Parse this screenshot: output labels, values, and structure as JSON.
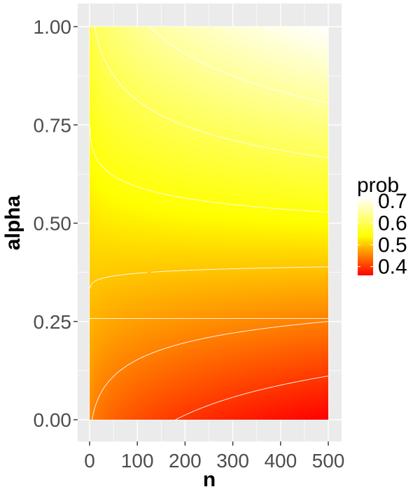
{
  "chart_data": {
    "type": "heatmap",
    "title": "",
    "xlabel": "n",
    "ylabel": "alpha",
    "xlim": [
      0,
      500
    ],
    "ylim": [
      0.0,
      1.0
    ],
    "x_ticks": [
      0,
      100,
      200,
      300,
      400,
      500
    ],
    "x_tick_labels": [
      "0",
      "100",
      "200",
      "300",
      "400",
      "500"
    ],
    "y_ticks": [
      0.0,
      0.25,
      0.5,
      0.75,
      1.0
    ],
    "y_tick_labels": [
      "0.00",
      "0.25",
      "0.50",
      "0.75",
      "1.00"
    ],
    "fill_variable": "prob",
    "color_scale": {
      "low": "#ff0000",
      "mid": "#ffff00",
      "high": "#ffffff",
      "limits": [
        0.36,
        0.72
      ]
    },
    "legend": {
      "title": "prob",
      "position": "right",
      "breaks": [
        0.4,
        0.5,
        0.6,
        0.7
      ],
      "labels": [
        "0.4",
        "0.5",
        "0.6",
        "0.7"
      ]
    },
    "corner_values": {
      "n0_alpha0": 0.46,
      "n0_alpha1": 0.58,
      "n500_alpha0": 0.36,
      "n500_alpha1": 0.72
    },
    "contour_color": "#ffffff",
    "grid": true,
    "background": "#ebebeb"
  }
}
